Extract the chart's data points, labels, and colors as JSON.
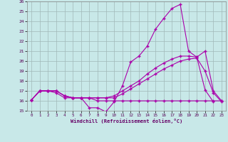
{
  "xlabel": "Windchill (Refroidissement éolien,°C)",
  "bg_color": "#c8e8e8",
  "grid_color": "#a0b8b8",
  "line_color": "#aa00aa",
  "xlim": [
    -0.5,
    23.5
  ],
  "ylim": [
    15,
    26
  ],
  "xticks": [
    0,
    1,
    2,
    3,
    4,
    5,
    6,
    7,
    8,
    9,
    10,
    11,
    12,
    13,
    14,
    15,
    16,
    17,
    18,
    19,
    20,
    21,
    22,
    23
  ],
  "yticks": [
    15,
    16,
    17,
    18,
    19,
    20,
    21,
    22,
    23,
    24,
    25,
    26
  ],
  "s1_x": [
    0,
    1,
    2,
    3,
    4,
    5,
    6,
    7,
    8,
    9,
    10,
    11,
    12,
    13,
    14,
    15,
    16,
    17,
    18,
    19,
    20,
    21,
    22
  ],
  "s1_y": [
    16.1,
    17.0,
    17.0,
    16.8,
    16.3,
    16.3,
    16.3,
    15.3,
    15.3,
    14.9,
    15.9,
    17.5,
    19.9,
    20.5,
    21.5,
    23.2,
    24.3,
    25.3,
    25.7,
    21.0,
    20.4,
    17.1,
    15.9
  ],
  "s2_x": [
    0,
    1,
    2,
    3,
    4,
    5,
    6,
    7,
    8,
    9,
    10,
    11,
    12,
    13,
    14,
    15,
    16,
    17,
    18,
    19,
    20,
    21,
    22,
    23
  ],
  "s2_y": [
    16.1,
    17.0,
    17.0,
    17.0,
    16.5,
    16.3,
    16.3,
    16.3,
    16.3,
    16.3,
    16.5,
    17.0,
    17.5,
    18.0,
    18.7,
    19.3,
    19.8,
    20.2,
    20.5,
    20.5,
    20.4,
    21.0,
    17.0,
    16.0
  ],
  "s3_x": [
    0,
    1,
    2,
    3,
    4,
    5,
    6,
    7,
    8,
    9,
    10,
    11,
    12,
    13,
    14,
    15,
    16,
    17,
    18,
    19,
    20,
    21,
    22,
    23
  ],
  "s3_y": [
    16.1,
    17.0,
    17.0,
    17.0,
    16.5,
    16.3,
    16.3,
    16.3,
    16.3,
    16.3,
    16.3,
    16.7,
    17.2,
    17.7,
    18.2,
    18.7,
    19.2,
    19.6,
    20.0,
    20.2,
    20.3,
    19.0,
    16.8,
    15.9
  ],
  "s4_x": [
    0,
    1,
    2,
    3,
    4,
    5,
    6,
    7,
    8,
    9,
    10,
    11,
    12,
    13,
    14,
    15,
    16,
    17,
    18,
    19,
    20,
    21,
    22,
    23
  ],
  "s4_y": [
    16.1,
    17.0,
    17.0,
    17.0,
    16.5,
    16.3,
    16.3,
    16.3,
    16.0,
    16.0,
    16.0,
    16.0,
    16.0,
    16.0,
    16.0,
    16.0,
    16.0,
    16.0,
    16.0,
    16.0,
    16.0,
    16.0,
    16.0,
    16.0
  ]
}
